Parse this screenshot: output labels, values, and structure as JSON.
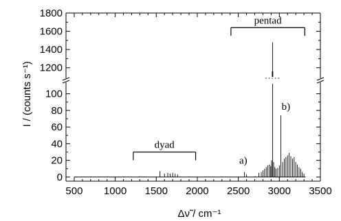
{
  "chart_data": {
    "type": "line",
    "xlabel": "Δν̃ / cm⁻¹",
    "ylabel": "I / (counts s⁻¹)",
    "xlim": [
      400,
      3500
    ],
    "x_ticks": [
      500,
      1000,
      1500,
      2000,
      2500,
      3000,
      3500
    ],
    "lower_ylim": [
      -5,
      112
    ],
    "lower_y_ticks": [
      0,
      20,
      40,
      60,
      80,
      100
    ],
    "upper_ylim": [
      1100,
      1800
    ],
    "upper_y_ticks": [
      1200,
      1400,
      1600,
      1800
    ],
    "broken_y_axis": true,
    "grid": false,
    "annotations": [
      {
        "text": "dyad",
        "x_start": 1220,
        "x_end": 1980,
        "axis": "lower",
        "y": 30
      },
      {
        "text": "pentad",
        "x_start": 2410,
        "x_end": 3310,
        "axis": "upper",
        "y": 1640
      },
      {
        "text": "a)",
        "x": 2560,
        "axis": "lower",
        "y": 20
      },
      {
        "text": "b)",
        "x": 3080,
        "axis": "lower",
        "y": 85
      }
    ],
    "peaks": [
      {
        "x": 1545,
        "y": 7
      },
      {
        "x": 1600,
        "y": 4
      },
      {
        "x": 1640,
        "y": 5
      },
      {
        "x": 1670,
        "y": 4
      },
      {
        "x": 1700,
        "y": 5
      },
      {
        "x": 1730,
        "y": 4
      },
      {
        "x": 1760,
        "y": 3
      },
      {
        "x": 2575,
        "y": 6
      },
      {
        "x": 2600,
        "y": 3
      },
      {
        "x": 2750,
        "y": 5
      },
      {
        "x": 2780,
        "y": 6
      },
      {
        "x": 2800,
        "y": 8
      },
      {
        "x": 2820,
        "y": 10
      },
      {
        "x": 2840,
        "y": 12
      },
      {
        "x": 2860,
        "y": 14
      },
      {
        "x": 2880,
        "y": 15
      },
      {
        "x": 2895,
        "y": 13
      },
      {
        "x": 2905,
        "y": 20
      },
      {
        "x": 2917,
        "y": 1480
      },
      {
        "x": 2930,
        "y": 18
      },
      {
        "x": 2945,
        "y": 12
      },
      {
        "x": 2960,
        "y": 10
      },
      {
        "x": 2980,
        "y": 11
      },
      {
        "x": 3000,
        "y": 14
      },
      {
        "x": 3019,
        "y": 74
      },
      {
        "x": 3040,
        "y": 18
      },
      {
        "x": 3060,
        "y": 22
      },
      {
        "x": 3080,
        "y": 24
      },
      {
        "x": 3100,
        "y": 26
      },
      {
        "x": 3120,
        "y": 29
      },
      {
        "x": 3140,
        "y": 25
      },
      {
        "x": 3160,
        "y": 22
      },
      {
        "x": 3180,
        "y": 24
      },
      {
        "x": 3200,
        "y": 18
      },
      {
        "x": 3220,
        "y": 15
      },
      {
        "x": 3240,
        "y": 12
      },
      {
        "x": 3260,
        "y": 10
      },
      {
        "x": 3280,
        "y": 6
      },
      {
        "x": 3300,
        "y": 4
      }
    ]
  }
}
